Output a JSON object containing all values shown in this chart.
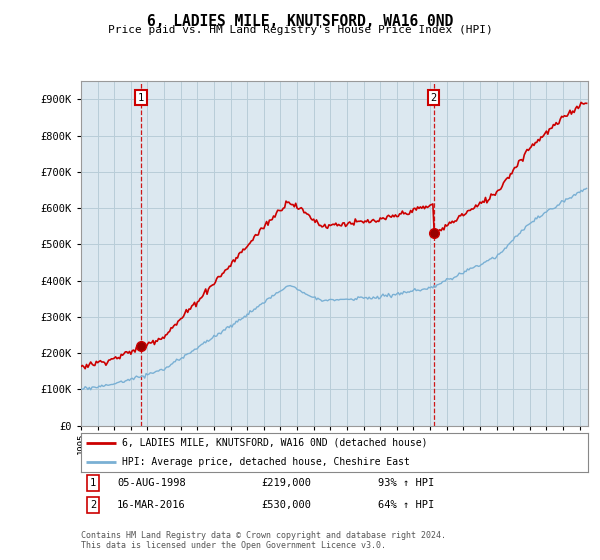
{
  "title": "6, LADIES MILE, KNUTSFORD, WA16 0ND",
  "subtitle": "Price paid vs. HM Land Registry's House Price Index (HPI)",
  "sale1_date": 1998.62,
  "sale1_price": 219000,
  "sale1_label": "1",
  "sale1_text": "05-AUG-1998",
  "sale1_price_text": "£219,000",
  "sale1_hpi_text": "93% ↑ HPI",
  "sale2_date": 2016.21,
  "sale2_price": 530000,
  "sale2_label": "2",
  "sale2_text": "16-MAR-2016",
  "sale2_price_text": "£530,000",
  "sale2_hpi_text": "64% ↑ HPI",
  "property_color": "#cc0000",
  "hpi_color": "#7ab0d4",
  "marker_box_color": "#cc0000",
  "chart_bg_color": "#dce8f0",
  "background_color": "#ffffff",
  "grid_color": "#b8cdd8",
  "legend_label1": "6, LADIES MILE, KNUTSFORD, WA16 0ND (detached house)",
  "legend_label2": "HPI: Average price, detached house, Cheshire East",
  "footer": "Contains HM Land Registry data © Crown copyright and database right 2024.\nThis data is licensed under the Open Government Licence v3.0.",
  "yticks": [
    0,
    100000,
    200000,
    300000,
    400000,
    500000,
    600000,
    700000,
    800000,
    900000
  ],
  "ytick_labels": [
    "£0",
    "£100K",
    "£200K",
    "£300K",
    "£400K",
    "£500K",
    "£600K",
    "£700K",
    "£800K",
    "£900K"
  ],
  "ylim_max": 950000,
  "xlim_start": 1995.0,
  "xlim_end": 2025.5
}
